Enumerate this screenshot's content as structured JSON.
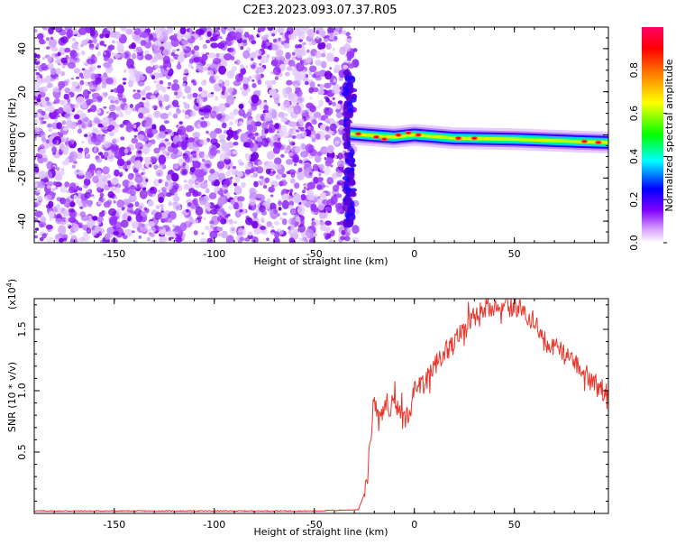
{
  "title": "C2E3.2023.093.07.37.R05",
  "chart_data": [
    {
      "type": "heatmap",
      "name": "spectrogram",
      "xlabel": "Height of straight line (km)",
      "ylabel": "Frequency (Hz)",
      "xlim": [
        -190,
        97
      ],
      "ylim": [
        -50,
        50
      ],
      "xticks": [
        -150,
        -100,
        -50,
        0,
        50
      ],
      "yticks": [
        -40,
        -20,
        0,
        20,
        40
      ],
      "noise_region_x": [
        -190,
        -32
      ],
      "signal_band": [
        {
          "x": -32,
          "freq": 0.5
        },
        {
          "x": -10,
          "freq": -1
        },
        {
          "x": 0,
          "freq": 0
        },
        {
          "x": 20,
          "freq": -1.5
        },
        {
          "x": 50,
          "freq": -2
        },
        {
          "x": 80,
          "freq": -3
        },
        {
          "x": 97,
          "freq": -3.5
        }
      ],
      "colorbar": {
        "label": "Normalized spectral amplitude",
        "ticks": [
          "0.0",
          "0.2",
          "0.4",
          "0.6",
          "0.8"
        ],
        "range": [
          0,
          1
        ],
        "colors": [
          "#ffffff",
          "#cc66ff",
          "#7f00ff",
          "#0000ff",
          "#00ffff",
          "#00ff00",
          "#ffff00",
          "#ff8000",
          "#ff0000",
          "#ff0066"
        ]
      }
    },
    {
      "type": "line",
      "name": "snr",
      "xlabel": "Height of straight line (km)",
      "ylabel": "SNR (10 * v/v)",
      "multiplier": "(x10",
      "multiplier_exp": "4",
      "multiplier_close": ")",
      "xlim": [
        -190,
        97
      ],
      "ylim": [
        0,
        1.75
      ],
      "xticks": [
        -150,
        -100,
        -50,
        0,
        50
      ],
      "yticks": [
        0.5,
        1.0,
        1.5
      ],
      "ytick_labels": [
        "0.5",
        "1.0",
        "1.5"
      ],
      "color": "#e8352a",
      "series": [
        {
          "x": [
            -190,
            -150,
            -100,
            -50,
            -28,
            -24,
            -22,
            -20,
            -19,
            -18,
            -15,
            -10,
            -5,
            -2,
            0,
            5,
            10,
            15,
            20,
            25,
            30,
            35,
            40,
            45,
            50,
            55,
            60,
            65,
            70,
            75,
            80,
            85,
            90,
            95,
            97
          ],
          "y": [
            0.02,
            0.02,
            0.02,
            0.02,
            0.03,
            0.2,
            0.6,
            0.95,
            0.85,
            0.75,
            0.85,
            0.9,
            0.75,
            0.85,
            1.0,
            1.05,
            1.2,
            1.3,
            1.4,
            1.5,
            1.6,
            1.68,
            1.7,
            1.7,
            1.68,
            1.65,
            1.55,
            1.4,
            1.35,
            1.3,
            1.25,
            1.15,
            1.05,
            1.0,
            0.95
          ]
        }
      ]
    }
  ]
}
